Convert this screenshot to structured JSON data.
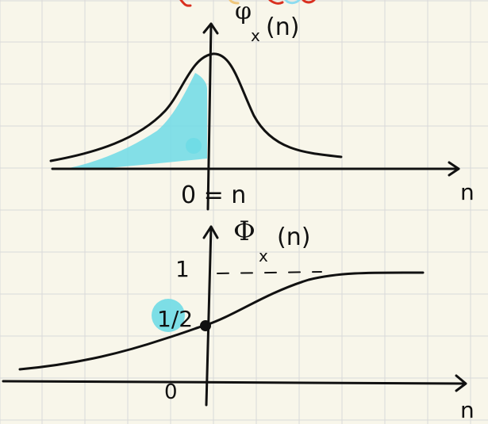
{
  "colors": {
    "paper": "#f8f6ea",
    "grid": "#d9d9d9",
    "ink": "#111111",
    "highlight": "#6fdbe6",
    "top_mark": "#d93020"
  },
  "top_plot": {
    "function_label": "φ",
    "function_subscript": "x",
    "function_argument": "(n)",
    "x_axis_label": "n",
    "center_label": "0 = n"
  },
  "bottom_plot": {
    "function_label": "Φ",
    "function_subscript": "x",
    "function_argument": "(n)",
    "x_axis_label": "n",
    "upper_level_label": "1",
    "midpoint_label": "1/2",
    "origin_label": "0",
    "upper_level_value": 1,
    "midpoint_value": 0.5
  }
}
